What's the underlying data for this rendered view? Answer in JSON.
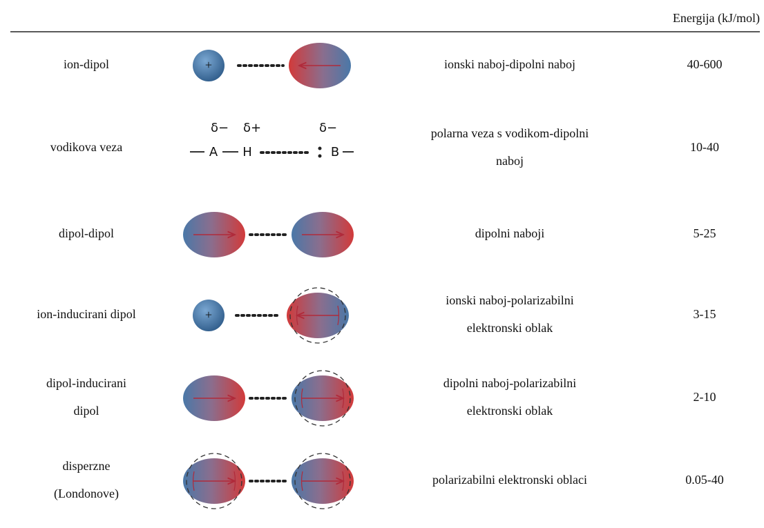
{
  "table": {
    "header": {
      "energy": "Energija (kJ/mol)"
    },
    "rows": [
      {
        "name": [
          "ion-dipol"
        ],
        "description": [
          "ionski naboj-dipolni naboj"
        ],
        "energy": "40-600"
      },
      {
        "name": [
          "vodikova veza"
        ],
        "description": [
          "polarna veza s vodikom-dipolni",
          "naboj"
        ],
        "energy": "10-40"
      },
      {
        "name": [
          "dipol-dipol"
        ],
        "description": [
          "dipolni naboji"
        ],
        "energy": "5-25"
      },
      {
        "name": [
          "ion-inducirani dipol"
        ],
        "description": [
          "ionski naboj-polarizabilni",
          "elektronski oblak"
        ],
        "energy": "3-15"
      },
      {
        "name": [
          "dipol-inducirani",
          "dipol"
        ],
        "description": [
          "dipolni naboj-polarizabilni",
          "elektronski oblak"
        ],
        "energy": "2-10"
      },
      {
        "name": [
          "disperzne",
          "(Londonove)"
        ],
        "description": [
          "polarizabilni elektronski oblaci"
        ],
        "energy": "0.05-40"
      }
    ]
  },
  "figure": {
    "ion_charge": "+",
    "hydrogen_bond": {
      "delta_a": "δ−",
      "delta_h": "δ+",
      "delta_b": "δ−",
      "atom_a": "A",
      "atom_h": "H",
      "atom_b": "B"
    }
  }
}
